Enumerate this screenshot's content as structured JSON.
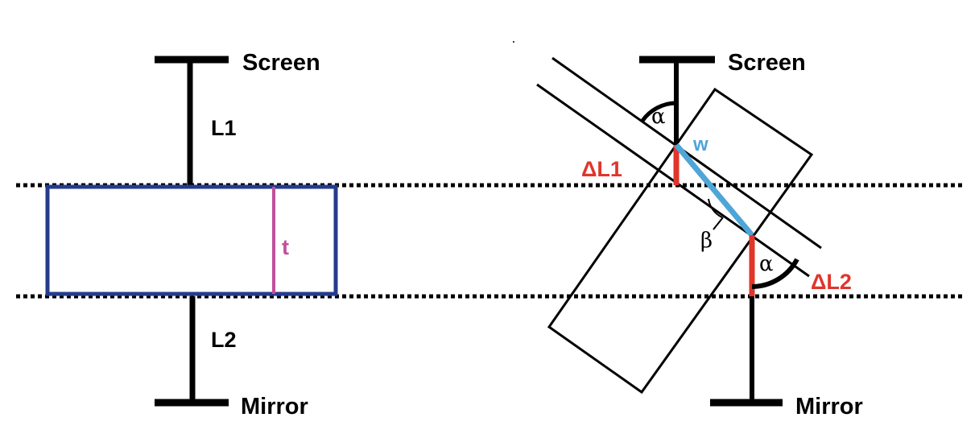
{
  "left_diagram": {
    "screen_label": "Screen",
    "l1_label": "L1",
    "l2_label": "L2",
    "mirror_label": "Mirror",
    "thickness_label": "t"
  },
  "right_diagram": {
    "screen_label": "Screen",
    "mirror_label": "Mirror",
    "alpha_top_label": "α",
    "alpha_bottom_label": "α",
    "beta_label": "β",
    "w_label": "w",
    "delta_l1_label": "ΔL1",
    "delta_l2_label": "ΔL2"
  },
  "colors": {
    "black": "#000000",
    "slab_outline": "#253b8c",
    "thickness_line": "#c0509b",
    "delta_red": "#e0352b",
    "w_blue": "#4ea5d8"
  }
}
